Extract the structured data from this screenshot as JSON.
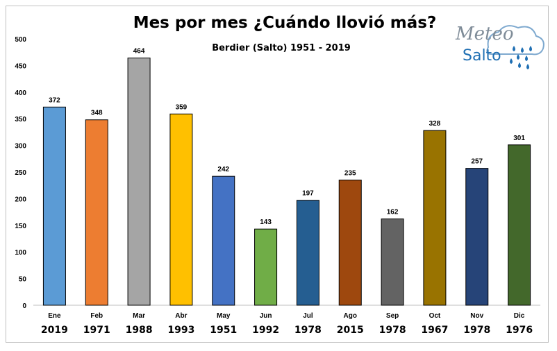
{
  "chart_data": {
    "type": "bar",
    "title": "Mes por mes ¿Cuándo llovió más?",
    "subtitle": "Berdier (Salto) 1951 - 2019",
    "categories": [
      "Ene",
      "Feb",
      "Mar",
      "Abr",
      "May",
      "Jun",
      "Jul",
      "Ago",
      "Sep",
      "Oct",
      "Nov",
      "Dic"
    ],
    "years": [
      "2019",
      "1971",
      "1988",
      "1993",
      "1951",
      "1992",
      "1978",
      "2015",
      "1978",
      "1967",
      "1978",
      "1976"
    ],
    "values": [
      372,
      348,
      464,
      359,
      242,
      143,
      197,
      235,
      162,
      328,
      257,
      301
    ],
    "colors": [
      "#5b9bd5",
      "#ed7d31",
      "#a5a5a5",
      "#ffc000",
      "#4472c4",
      "#70ad47",
      "#255e91",
      "#9e480e",
      "#636363",
      "#997300",
      "#264478",
      "#43682b"
    ],
    "ylim": [
      0,
      500
    ],
    "yticks": [
      0,
      50,
      100,
      150,
      200,
      250,
      300,
      350,
      400,
      450,
      500
    ],
    "grid": false,
    "data_labels": true
  },
  "logo": {
    "line1": "Meteo",
    "line2": "Salto"
  }
}
